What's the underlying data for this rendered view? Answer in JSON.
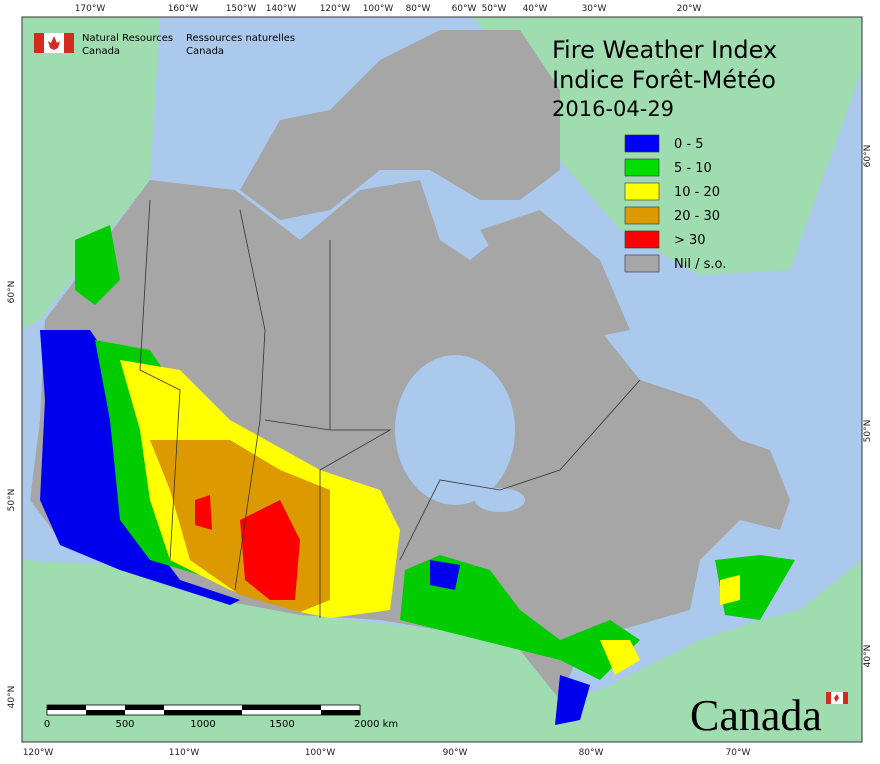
{
  "header": {
    "org_en": [
      "Natural Resources",
      "Canada"
    ],
    "org_fr": [
      "Ressources naturelles",
      "Canada"
    ]
  },
  "title": {
    "line1": "Fire Weather Index",
    "line2": "Indice Forêt-Météo",
    "date": "2016-04-29"
  },
  "legend": [
    {
      "label": "0 - 5",
      "color": "#0000ff"
    },
    {
      "label": "5 - 10",
      "color": "#00dd00"
    },
    {
      "label": "10 - 20",
      "color": "#ffff00"
    },
    {
      "label": "20 - 30",
      "color": "#dd9900"
    },
    {
      "label": "> 30",
      "color": "#ff0000"
    },
    {
      "label": "Nil / s.o.",
      "color": "#a6a6a6"
    }
  ],
  "graticule": {
    "top": [
      "170°W",
      "160°W",
      "150°W",
      "140°W",
      "120°W",
      "100°W",
      "80°W",
      "60°W",
      "50°W",
      "40°W",
      "30°W",
      "20°W"
    ],
    "bottom": [
      "120°W",
      "110°W",
      "100°W",
      "90°W",
      "80°W",
      "70°W"
    ],
    "left": [
      "60°N",
      "50°N",
      "40°N"
    ],
    "right": [
      "60°N",
      "50°N",
      "40°N"
    ]
  },
  "scale_bar": {
    "labels": [
      "0",
      "500",
      "1000",
      "1500",
      "2000 km"
    ]
  },
  "wordmark": "Canada"
}
